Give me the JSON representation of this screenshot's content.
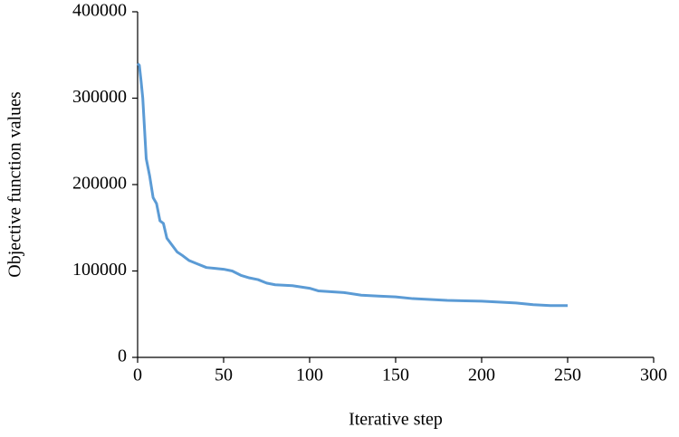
{
  "chart_data": {
    "type": "line",
    "x_label": "Iterative step",
    "y_label": "Objective function values",
    "x": [
      0,
      1,
      2,
      3,
      5,
      7,
      9,
      11,
      13,
      15,
      17,
      20,
      23,
      26,
      30,
      35,
      40,
      45,
      50,
      55,
      60,
      65,
      70,
      75,
      80,
      90,
      100,
      105,
      120,
      130,
      140,
      150,
      160,
      180,
      200,
      220,
      230,
      240,
      250
    ],
    "series": [
      {
        "color": "#5b9bd5",
        "values": [
          340000,
          338000,
          320000,
          300000,
          230000,
          210000,
          185000,
          178000,
          158000,
          155000,
          138000,
          130000,
          122000,
          118000,
          112000,
          108000,
          104000,
          103000,
          102000,
          100000,
          95000,
          92000,
          90000,
          86000,
          84000,
          83000,
          80000,
          77000,
          75000,
          72000,
          71000,
          70000,
          68000,
          66000,
          65000,
          63000,
          61000,
          60000,
          60000
        ]
      }
    ],
    "xlim": [
      0,
      300
    ],
    "xticks": [
      0,
      50,
      100,
      150,
      200,
      250,
      300
    ],
    "ylim": [
      0,
      400000
    ],
    "yticks": [
      0,
      100000,
      200000,
      300000,
      400000
    ],
    "grid": false
  }
}
